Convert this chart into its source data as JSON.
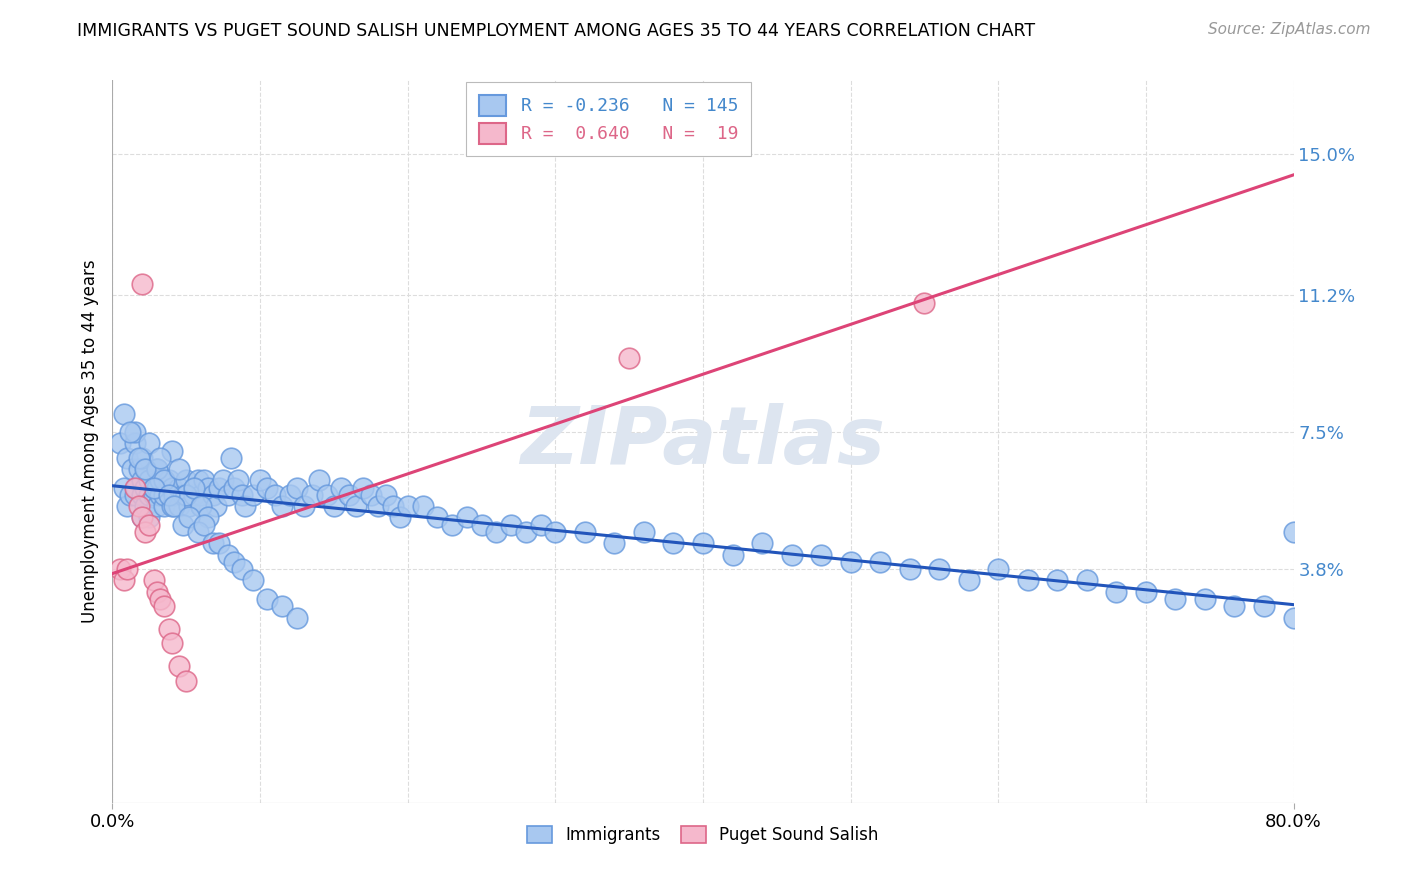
{
  "title": "IMMIGRANTS VS PUGET SOUND SALISH UNEMPLOYMENT AMONG AGES 35 TO 44 YEARS CORRELATION CHART",
  "source": "Source: ZipAtlas.com",
  "ylabel": "Unemployment Among Ages 35 to 44 years",
  "immigrants_color": "#a8c8f0",
  "immigrants_edge_color": "#6699dd",
  "salish_color": "#f5b8cc",
  "salish_edge_color": "#dd6688",
  "immigrants_line_color": "#2255bb",
  "salish_line_color": "#dd4477",
  "watermark_color": "#dde5f0",
  "background_color": "#ffffff",
  "grid_color": "#dddddd",
  "right_label_color": "#4488cc",
  "xlim": [
    0.0,
    0.8
  ],
  "ylim": [
    -0.025,
    0.17
  ],
  "ytick_vals": [
    0.038,
    0.075,
    0.112,
    0.15
  ],
  "ytick_labels": [
    "3.8%",
    "7.5%",
    "11.2%",
    "15.0%"
  ],
  "xtick_vals": [
    0.0,
    0.8
  ],
  "xtick_labels": [
    "0.0%",
    "80.0%"
  ],
  "legend1_label": "R = -0.236   N = 145",
  "legend2_label": "R =  0.640   N =  19",
  "imm_x": [
    0.005,
    0.008,
    0.01,
    0.01,
    0.012,
    0.013,
    0.015,
    0.015,
    0.016,
    0.018,
    0.02,
    0.02,
    0.02,
    0.022,
    0.022,
    0.023,
    0.025,
    0.025,
    0.025,
    0.028,
    0.028,
    0.03,
    0.03,
    0.03,
    0.032,
    0.032,
    0.035,
    0.035,
    0.038,
    0.04,
    0.04,
    0.042,
    0.045,
    0.045,
    0.048,
    0.05,
    0.05,
    0.052,
    0.055,
    0.055,
    0.058,
    0.06,
    0.06,
    0.062,
    0.065,
    0.068,
    0.07,
    0.072,
    0.075,
    0.078,
    0.08,
    0.082,
    0.085,
    0.088,
    0.09,
    0.095,
    0.1,
    0.105,
    0.11,
    0.115,
    0.12,
    0.125,
    0.13,
    0.135,
    0.14,
    0.145,
    0.15,
    0.155,
    0.16,
    0.165,
    0.17,
    0.175,
    0.18,
    0.185,
    0.19,
    0.195,
    0.2,
    0.21,
    0.22,
    0.23,
    0.24,
    0.25,
    0.26,
    0.27,
    0.28,
    0.29,
    0.3,
    0.32,
    0.34,
    0.36,
    0.38,
    0.4,
    0.42,
    0.44,
    0.46,
    0.48,
    0.5,
    0.52,
    0.54,
    0.56,
    0.58,
    0.6,
    0.62,
    0.64,
    0.66,
    0.68,
    0.7,
    0.72,
    0.74,
    0.76,
    0.78,
    0.8,
    0.8,
    0.015,
    0.02,
    0.025,
    0.03,
    0.035,
    0.04,
    0.045,
    0.05,
    0.055,
    0.06,
    0.065,
    0.008,
    0.012,
    0.018,
    0.022,
    0.028,
    0.032,
    0.038,
    0.042,
    0.048,
    0.052,
    0.058,
    0.062,
    0.068,
    0.072,
    0.078,
    0.082,
    0.088,
    0.095,
    0.105,
    0.115,
    0.125
  ],
  "imm_y": [
    0.072,
    0.06,
    0.068,
    0.055,
    0.058,
    0.065,
    0.058,
    0.072,
    0.06,
    0.065,
    0.058,
    0.062,
    0.052,
    0.06,
    0.055,
    0.065,
    0.058,
    0.062,
    0.052,
    0.058,
    0.06,
    0.055,
    0.06,
    0.065,
    0.058,
    0.062,
    0.055,
    0.058,
    0.062,
    0.055,
    0.06,
    0.058,
    0.06,
    0.055,
    0.058,
    0.062,
    0.058,
    0.055,
    0.058,
    0.06,
    0.062,
    0.058,
    0.055,
    0.062,
    0.06,
    0.058,
    0.055,
    0.06,
    0.062,
    0.058,
    0.068,
    0.06,
    0.062,
    0.058,
    0.055,
    0.058,
    0.062,
    0.06,
    0.058,
    0.055,
    0.058,
    0.06,
    0.055,
    0.058,
    0.062,
    0.058,
    0.055,
    0.06,
    0.058,
    0.055,
    0.06,
    0.058,
    0.055,
    0.058,
    0.055,
    0.052,
    0.055,
    0.055,
    0.052,
    0.05,
    0.052,
    0.05,
    0.048,
    0.05,
    0.048,
    0.05,
    0.048,
    0.048,
    0.045,
    0.048,
    0.045,
    0.045,
    0.042,
    0.045,
    0.042,
    0.042,
    0.04,
    0.04,
    0.038,
    0.038,
    0.035,
    0.038,
    0.035,
    0.035,
    0.035,
    0.032,
    0.032,
    0.03,
    0.03,
    0.028,
    0.028,
    0.048,
    0.025,
    0.075,
    0.068,
    0.072,
    0.065,
    0.062,
    0.07,
    0.065,
    0.058,
    0.06,
    0.055,
    0.052,
    0.08,
    0.075,
    0.068,
    0.065,
    0.06,
    0.068,
    0.058,
    0.055,
    0.05,
    0.052,
    0.048,
    0.05,
    0.045,
    0.045,
    0.042,
    0.04,
    0.038,
    0.035,
    0.03,
    0.028,
    0.025
  ],
  "sal_x": [
    0.005,
    0.008,
    0.01,
    0.015,
    0.018,
    0.02,
    0.022,
    0.025,
    0.028,
    0.03,
    0.032,
    0.035,
    0.038,
    0.04,
    0.045,
    0.05,
    0.35,
    0.55,
    0.02
  ],
  "sal_y": [
    0.038,
    0.035,
    0.038,
    0.06,
    0.055,
    0.052,
    0.048,
    0.05,
    0.035,
    0.032,
    0.03,
    0.028,
    0.022,
    0.018,
    0.012,
    0.008,
    0.095,
    0.11,
    0.115
  ]
}
